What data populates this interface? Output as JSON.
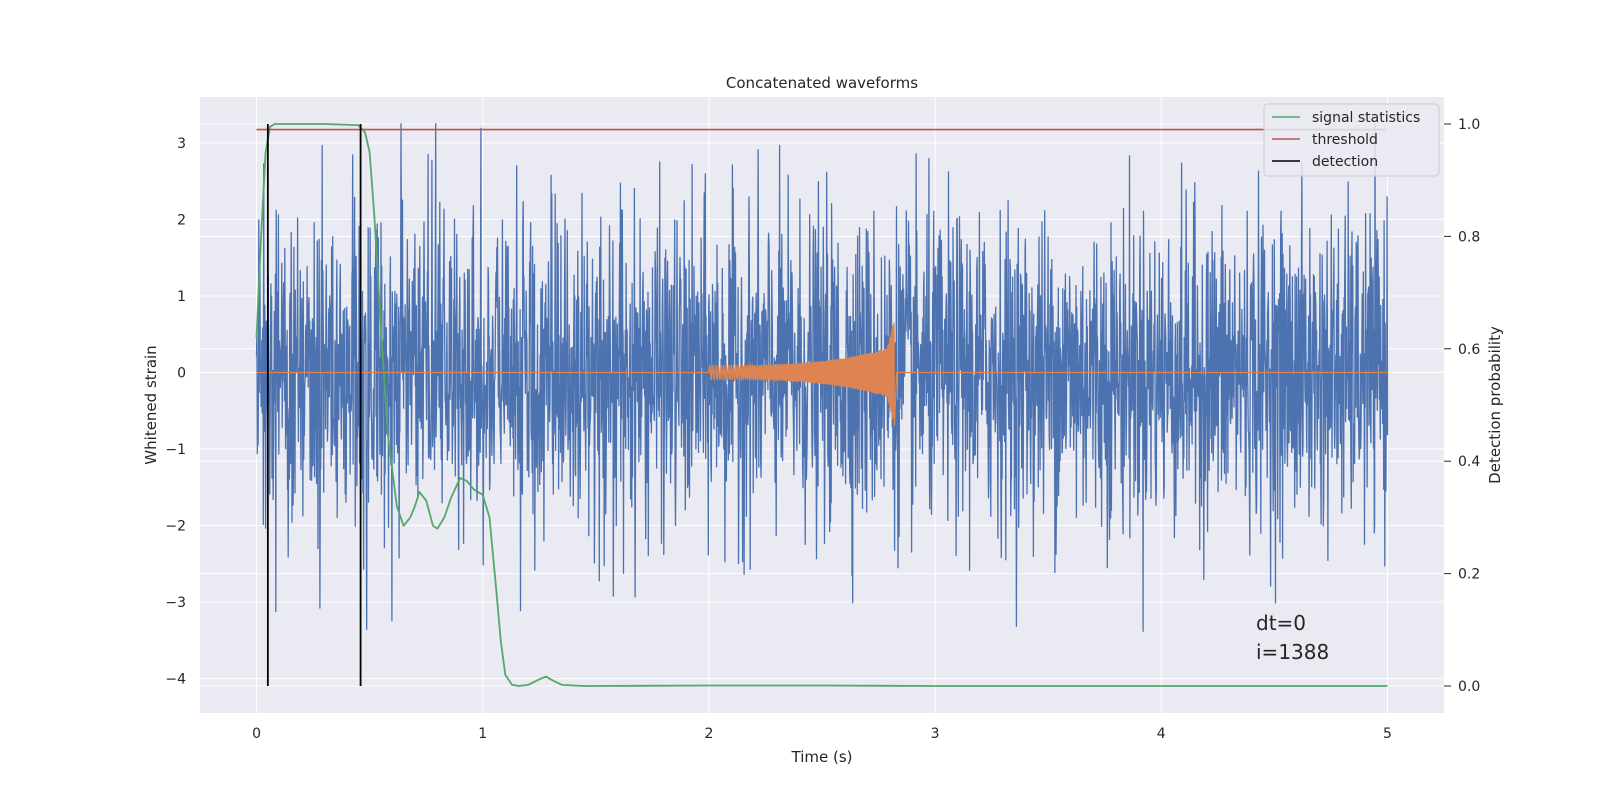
{
  "chart_data": {
    "type": "line",
    "title": "Concatenated waveforms",
    "xlabel": "Time (s)",
    "ylabel": "Whitened strain",
    "y2label": "Detection probability",
    "xlim": [
      -0.25,
      5.25
    ],
    "ylim": [
      -4.45,
      3.6
    ],
    "y2lim": [
      -0.048,
      1.048
    ],
    "xticks": [
      0,
      1,
      2,
      3,
      4,
      5
    ],
    "yticks": [
      -4,
      -3,
      -2,
      -1,
      0,
      1,
      2,
      3
    ],
    "y2ticks": [
      0.0,
      0.2,
      0.4,
      0.6,
      0.8,
      1.0
    ],
    "grid": true,
    "legend_position": "top-right",
    "colors": {
      "strain": "#4c72b0",
      "template": "#dd8452",
      "signal_statistics": "#55a868",
      "threshold": "#c44e52",
      "detection": "#000000",
      "background": "#eaeaf2",
      "grid": "#ffffff"
    },
    "series": [
      {
        "name": "signal statistics",
        "axis": "right",
        "x": [
          0,
          0.02,
          0.04,
          0.06,
          0.08,
          0.1,
          0.3,
          0.45,
          0.48,
          0.5,
          0.52,
          0.55,
          0.58,
          0.62,
          0.65,
          0.68,
          0.7,
          0.72,
          0.75,
          0.78,
          0.8,
          0.83,
          0.86,
          0.9,
          0.93,
          0.96,
          1.0,
          1.03,
          1.06,
          1.08,
          1.1,
          1.13,
          1.16,
          1.2,
          1.25,
          1.28,
          1.3,
          1.35,
          1.45,
          2.0,
          2.5,
          3.0,
          4.0,
          5.0
        ],
        "y": [
          0.62,
          0.8,
          0.95,
          0.995,
          1.0,
          1.0,
          1.0,
          0.998,
          0.985,
          0.95,
          0.84,
          0.64,
          0.45,
          0.32,
          0.285,
          0.3,
          0.32,
          0.345,
          0.33,
          0.285,
          0.28,
          0.3,
          0.335,
          0.37,
          0.365,
          0.35,
          0.34,
          0.3,
          0.17,
          0.08,
          0.02,
          0.002,
          0.0,
          0.002,
          0.012,
          0.017,
          0.012,
          0.002,
          0.0,
          0.001,
          0.001,
          0.0,
          0.0,
          0.0
        ]
      },
      {
        "name": "threshold",
        "axis": "right",
        "x": [
          0,
          5
        ],
        "y": [
          0.99,
          0.99
        ]
      },
      {
        "name": "detection",
        "axis": "right",
        "x": [
          0.05,
          0.46
        ],
        "y": [
          0.0,
          1.0
        ]
      },
      {
        "name": "strain",
        "axis": "left",
        "x_range": [
          0,
          5
        ],
        "amplitude": 1.0
      },
      {
        "name": "template",
        "axis": "left",
        "x_range": [
          2.0,
          2.82
        ]
      }
    ],
    "legend": [
      "signal statistics",
      "threshold",
      "detection"
    ],
    "annotations": [
      "dt=0",
      "i=1388"
    ]
  }
}
